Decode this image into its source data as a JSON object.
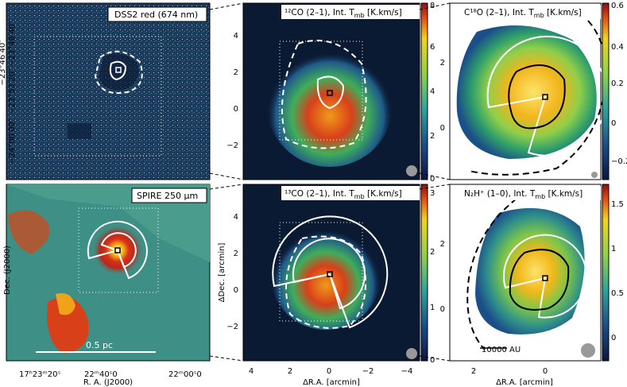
{
  "panels": {
    "dss2": {
      "label": "DSS2 red (674 nm)",
      "yticks": [
        "−23°46′40″",
        "−23°53′20″",
        "−24°00′00″"
      ]
    },
    "spire": {
      "label": "SPIRE 250 μm",
      "ylabel": "Dec. (J2000)",
      "yticks": [
        "−23°46′40″",
        "−23°53′20″",
        "−24°00′00″"
      ],
      "xlabel": "R. A. (J2000)",
      "xticks": [
        "17ʰ23ᵐ20ˢ",
        "22ᵐ40ˢ0",
        "22ᵐ00ˢ0"
      ],
      "scalebar": "0.5 pc"
    },
    "co12": {
      "label": "¹²CO (2–1),  Int. T",
      "label_sub": "mb",
      "label_unit": " [K.km/s]",
      "yticks": [
        "4",
        "2",
        "0",
        "−2"
      ],
      "cbar_ticks": [
        "8",
        "6",
        "4",
        "2",
        "0"
      ]
    },
    "co13": {
      "label": "¹³CO (2–1),  Int. T",
      "label_sub": "mb",
      "label_unit": " [K.km/s]",
      "ylabel": "ΔDec. [arcmin]",
      "yticks": [
        "4",
        "2",
        "0",
        "−2"
      ],
      "xlabel": "ΔR.A. [arcmin]",
      "xticks": [
        "4",
        "2",
        "0",
        "−2",
        "−4"
      ],
      "cbar_ticks": [
        "3",
        "2",
        "1",
        "0"
      ]
    },
    "c18o": {
      "label": "C¹⁸O (2–1),  Int. T",
      "label_sub": "mb",
      "label_unit": " [K.km/s]",
      "yticks": [
        "2",
        "0"
      ],
      "cbar_ticks": [
        "0.6",
        "0.4",
        "0.2",
        "0",
        "−0.2"
      ]
    },
    "n2h": {
      "label": "N₂H⁺ (1–0),  Int. T",
      "label_sub": "mb",
      "label_unit": " [K.km/s]",
      "yticks": [
        "2",
        "0"
      ],
      "xlabel": "ΔR.A. [arcmin]",
      "xticks": [
        "2",
        "0"
      ],
      "cbar_ticks": [
        "1.5",
        "1",
        "0.5",
        "0"
      ],
      "scalebar": "10000 AU"
    }
  },
  "colors": {
    "dss_bg": "#1d3a5a",
    "spire_bg": "#3e8f86",
    "map_bg": "#0b1a33",
    "contour": "#ffffff",
    "contour_dark": "#000000"
  }
}
